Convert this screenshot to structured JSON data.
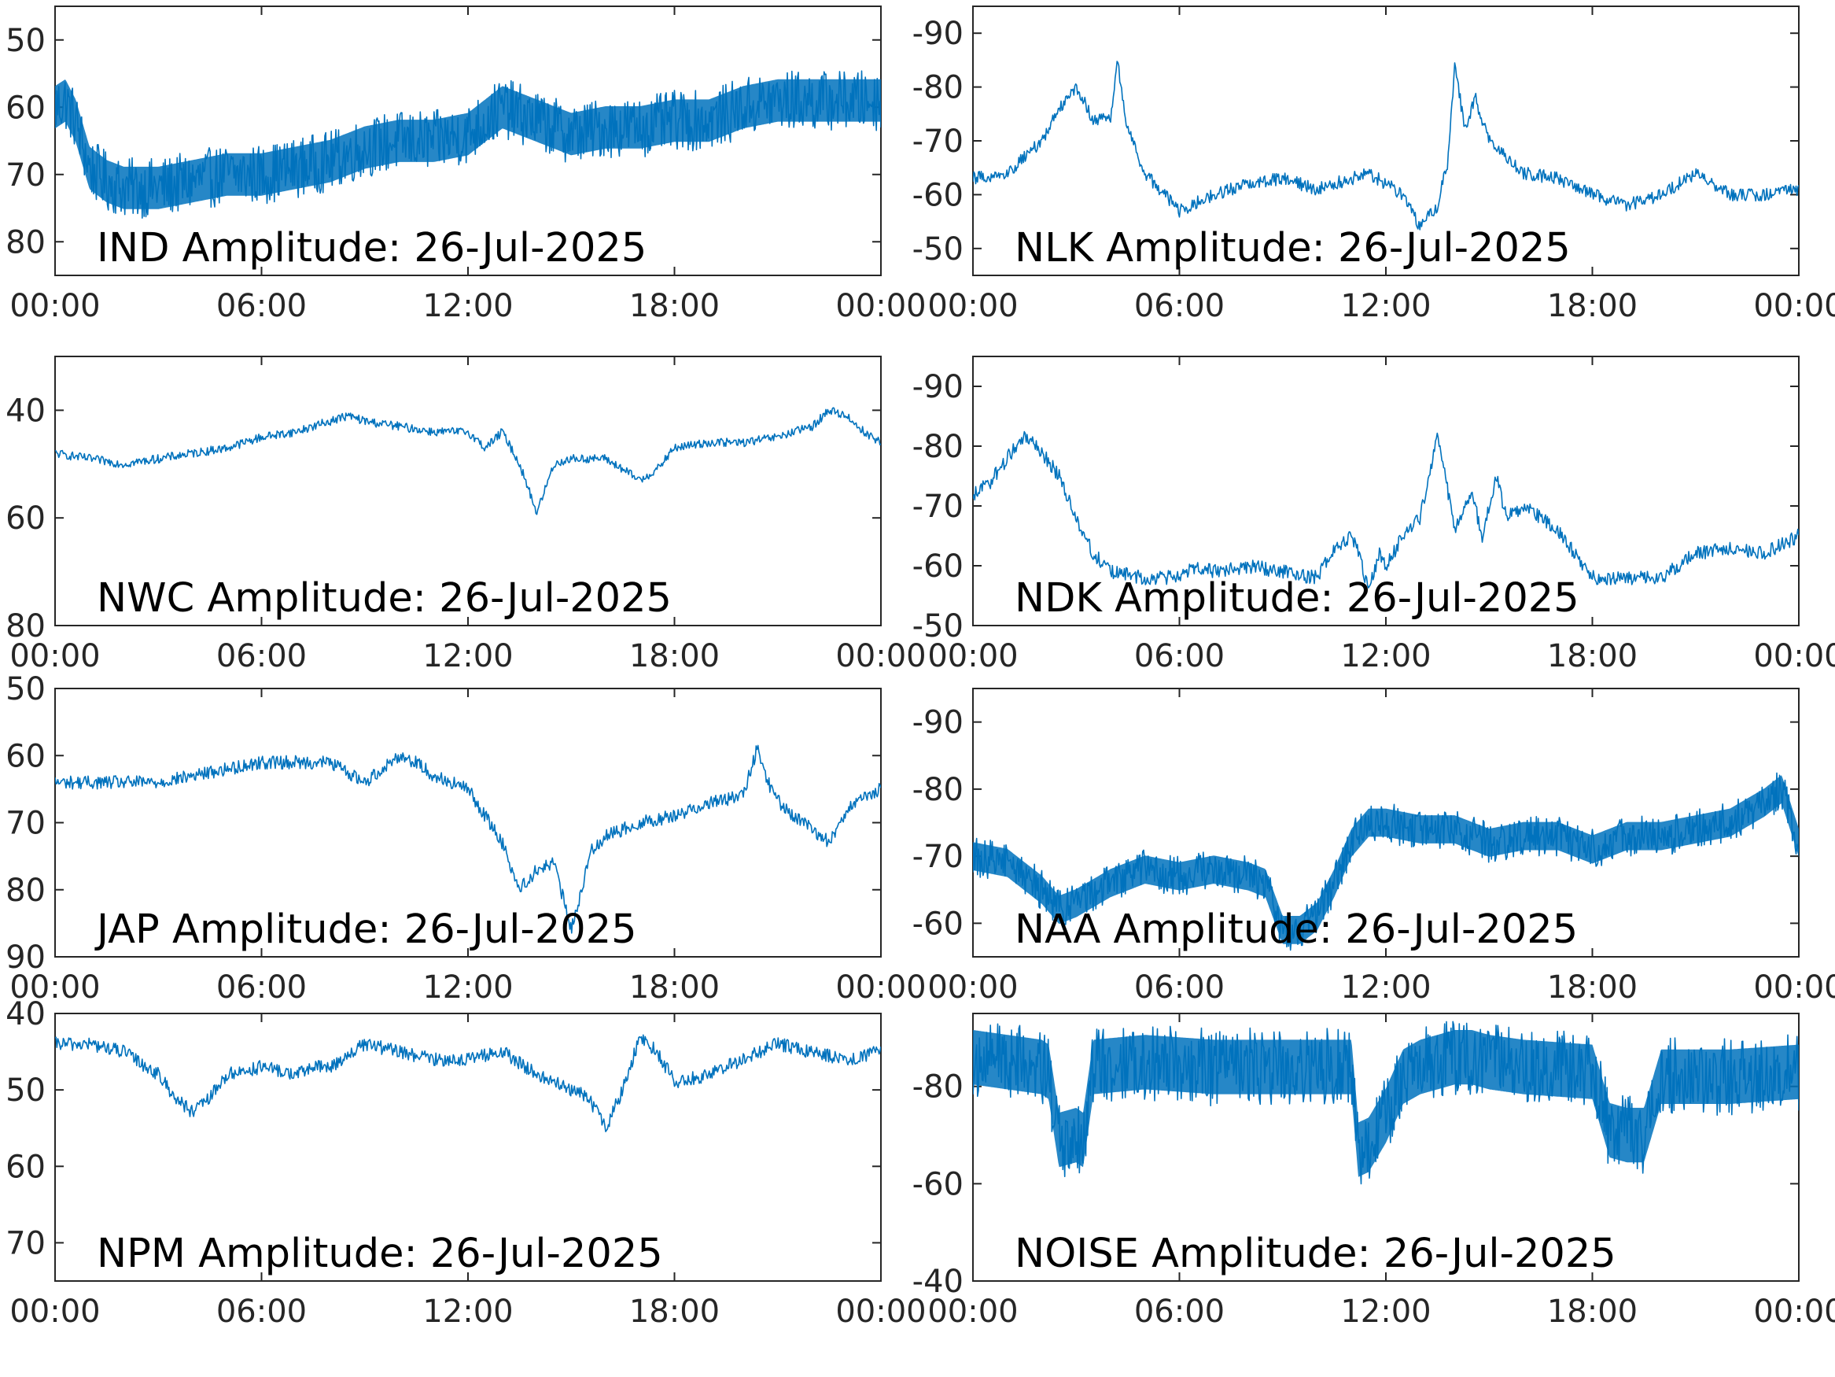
{
  "colors": {
    "trace": "#0072BD",
    "axis": "#262626",
    "background": "#ffffff"
  },
  "x_ticks": [
    "00:00",
    "06:00",
    "12:00",
    "18:00",
    "00:00"
  ],
  "chart_data": [
    {
      "type": "line",
      "title": "IND Amplitude: 26-Jul-2025",
      "x_unit": "hours",
      "xlim": [
        0,
        24
      ],
      "ylim": [
        -85,
        -45
      ],
      "y_reversed": true,
      "y_ticks": [
        -50,
        -60,
        -70,
        -80
      ],
      "y_tick_labels": [
        "50",
        "60",
        "70",
        "80"
      ],
      "noise": 4.5,
      "x": [
        0,
        0.3,
        0.6,
        1.0,
        1.5,
        2.0,
        3.0,
        4.0,
        5.0,
        6.0,
        7.0,
        8.0,
        9.0,
        10.0,
        11.0,
        12.0,
        13.0,
        14.0,
        15.0,
        16.0,
        17.0,
        18.0,
        19.0,
        20.0,
        21.0,
        22.0,
        23.0,
        24.0
      ],
      "y": [
        -60,
        -59,
        -62,
        -69,
        -71,
        -72,
        -72,
        -71,
        -70,
        -70,
        -69,
        -68,
        -66,
        -65,
        -65,
        -64,
        -60,
        -62,
        -64,
        -63,
        -63,
        -62,
        -62,
        -60,
        -59,
        -59,
        -59,
        -59
      ]
    },
    {
      "type": "line",
      "title": "NLK Amplitude: 26-Jul-2025",
      "x_unit": "hours",
      "xlim": [
        0,
        24
      ],
      "ylim": [
        -95,
        -45
      ],
      "y_reversed": false,
      "y_ticks": [
        -50,
        -60,
        -70,
        -80,
        -90
      ],
      "y_tick_labels": [
        "-50",
        "-60",
        "-70",
        "-80",
        "-90"
      ],
      "noise": 1.2,
      "x": [
        0,
        1.0,
        2.0,
        2.5,
        3.0,
        3.5,
        4.0,
        4.2,
        4.5,
        5.0,
        6.0,
        7.0,
        8.0,
        9.0,
        10.0,
        11.0,
        11.5,
        12.0,
        12.5,
        13.0,
        13.5,
        13.8,
        14.0,
        14.3,
        14.6,
        15.0,
        16.0,
        17.0,
        18.0,
        19.0,
        20.0,
        21.0,
        22.0,
        23.0,
        24.0
      ],
      "y": [
        -63,
        -64,
        -70,
        -76,
        -80,
        -74,
        -74,
        -85,
        -72,
        -64,
        -57,
        -60,
        -62,
        -63,
        -61,
        -63,
        -64,
        -62,
        -60,
        -54,
        -58,
        -66,
        -84,
        -72,
        -78,
        -70,
        -64,
        -63,
        -60,
        -58,
        -60,
        -64,
        -60,
        -60,
        -61
      ]
    },
    {
      "type": "line",
      "title": "NWC Amplitude: 26-Jul-2025",
      "x_unit": "hours",
      "xlim": [
        0,
        24
      ],
      "ylim": [
        -80,
        -30
      ],
      "y_reversed": true,
      "y_ticks": [
        -40,
        -60,
        -80
      ],
      "y_tick_labels": [
        "40",
        "60",
        "80"
      ],
      "noise": 0.8,
      "x": [
        0,
        1.0,
        2.0,
        3.0,
        4.0,
        5.0,
        6.0,
        7.0,
        8.0,
        8.5,
        9.0,
        10.0,
        11.0,
        12.0,
        12.5,
        13.0,
        13.5,
        14.0,
        14.5,
        15.0,
        16.0,
        16.5,
        17.0,
        17.5,
        18.0,
        19.0,
        20.0,
        21.0,
        22.0,
        22.5,
        23.0,
        23.5,
        24.0
      ],
      "y": [
        -48,
        -49,
        -50,
        -49,
        -48,
        -47,
        -45,
        -44,
        -42,
        -41,
        -42,
        -43,
        -44,
        -44,
        -47,
        -44,
        -50,
        -59,
        -50,
        -49,
        -49,
        -51,
        -53,
        -51,
        -47,
        -46,
        -46,
        -45,
        -43,
        -40,
        -41,
        -44,
        -46
      ]
    },
    {
      "type": "line",
      "title": "NDK Amplitude: 26-Jul-2025",
      "x_unit": "hours",
      "xlim": [
        0,
        24
      ],
      "ylim": [
        -95,
        -50
      ],
      "y_reversed": false,
      "y_ticks": [
        -50,
        -60,
        -70,
        -80,
        -90
      ],
      "y_tick_labels": [
        "-50",
        "-60",
        "-70",
        "-80",
        "-90"
      ],
      "noise": 1.2,
      "x": [
        0,
        0.5,
        1.0,
        1.5,
        2.0,
        2.5,
        3.0,
        3.5,
        4.0,
        5.0,
        6.0,
        6.5,
        7.0,
        8.0,
        9.0,
        10.0,
        10.5,
        11.0,
        11.2,
        11.5,
        11.8,
        12.0,
        12.5,
        13.0,
        13.5,
        14.0,
        14.5,
        14.8,
        15.2,
        15.5,
        16.0,
        17.0,
        18.0,
        19.0,
        20.0,
        21.0,
        22.0,
        23.0,
        24.0
      ],
      "y": [
        -72,
        -74,
        -78,
        -82,
        -79,
        -75,
        -68,
        -62,
        -59,
        -58,
        -58,
        -60,
        -59,
        -60,
        -59,
        -58,
        -63,
        -65,
        -62,
        -56,
        -62,
        -60,
        -65,
        -68,
        -82,
        -66,
        -72,
        -65,
        -75,
        -68,
        -70,
        -66,
        -58,
        -58,
        -58,
        -62,
        -63,
        -62,
        -65
      ]
    },
    {
      "type": "line",
      "title": "JAP Amplitude: 26-Jul-2025",
      "x_unit": "hours",
      "xlim": [
        0,
        24
      ],
      "ylim": [
        -90,
        -50
      ],
      "y_reversed": true,
      "y_ticks": [
        -50,
        -60,
        -70,
        -80,
        -90
      ],
      "y_tick_labels": [
        "50",
        "60",
        "70",
        "80",
        "90"
      ],
      "noise": 1.0,
      "x": [
        0,
        1.0,
        2.0,
        3.0,
        4.0,
        5.0,
        6.0,
        7.0,
        8.0,
        9.0,
        9.5,
        10.0,
        10.5,
        11.0,
        12.0,
        12.5,
        13.0,
        13.5,
        14.0,
        14.5,
        15.0,
        15.3,
        15.6,
        16.0,
        17.0,
        18.0,
        19.0,
        20.0,
        20.4,
        20.8,
        21.2,
        22.0,
        22.5,
        23.0,
        24.0
      ],
      "y": [
        -64,
        -64,
        -64,
        -64,
        -63,
        -62,
        -61,
        -61,
        -61,
        -64,
        -62,
        -60,
        -61,
        -63,
        -65,
        -69,
        -73,
        -80,
        -77,
        -76,
        -86,
        -80,
        -74,
        -72,
        -70,
        -69,
        -67,
        -66,
        -59,
        -65,
        -68,
        -71,
        -73,
        -68,
        -65
      ]
    },
    {
      "type": "line",
      "title": "NAA Amplitude: 26-Jul-2025",
      "x_unit": "hours",
      "xlim": [
        0,
        24
      ],
      "ylim": [
        -95,
        -55
      ],
      "y_reversed": false,
      "y_ticks": [
        -60,
        -70,
        -80,
        -90
      ],
      "y_tick_labels": [
        "-60",
        "-70",
        "-80",
        "-90"
      ],
      "noise": 3.0,
      "x": [
        0,
        1.0,
        2.0,
        2.5,
        3.0,
        4.0,
        5.0,
        6.0,
        7.0,
        8.0,
        8.5,
        9.0,
        9.5,
        10.0,
        10.5,
        11.0,
        11.5,
        12.0,
        13.0,
        14.0,
        15.0,
        16.0,
        17.0,
        18.0,
        19.0,
        20.0,
        21.0,
        22.0,
        23.0,
        23.5,
        24.0
      ],
      "y": [
        -70,
        -69,
        -65,
        -62,
        -63,
        -66,
        -68,
        -67,
        -68,
        -67,
        -66,
        -59,
        -59,
        -61,
        -66,
        -72,
        -75,
        -75,
        -74,
        -74,
        -72,
        -73,
        -73,
        -71,
        -73,
        -73,
        -74,
        -75,
        -78,
        -80,
        -72
      ]
    },
    {
      "type": "line",
      "title": "NPM Amplitude: 26-Jul-2025",
      "x_unit": "hours",
      "xlim": [
        0,
        24
      ],
      "ylim": [
        -75,
        -40
      ],
      "y_reversed": true,
      "y_ticks": [
        -40,
        -50,
        -60,
        -70
      ],
      "y_tick_labels": [
        "40",
        "50",
        "60",
        "70"
      ],
      "noise": 0.9,
      "x": [
        0,
        1.0,
        2.0,
        3.0,
        3.5,
        4.0,
        4.5,
        5.0,
        6.0,
        7.0,
        7.5,
        8.0,
        9.0,
        10.0,
        11.0,
        12.0,
        13.0,
        14.0,
        15.0,
        15.5,
        16.0,
        16.5,
        17.0,
        17.5,
        18.0,
        19.0,
        20.0,
        21.0,
        22.0,
        23.0,
        24.0
      ],
      "y": [
        -44,
        -44,
        -45,
        -48,
        -51,
        -53,
        -51,
        -48,
        -47,
        -48,
        -47,
        -47,
        -44,
        -45,
        -46,
        -46,
        -45,
        -48,
        -50,
        -51,
        -55,
        -50,
        -43,
        -45,
        -49,
        -48,
        -46,
        -44,
        -45,
        -46,
        -45
      ]
    },
    {
      "type": "line",
      "title": "NOISE Amplitude: 26-Jul-2025",
      "x_unit": "hours",
      "xlim": [
        0,
        24
      ],
      "ylim": [
        -95,
        -40
      ],
      "y_reversed": false,
      "y_ticks": [
        -40,
        -60,
        -80
      ],
      "y_tick_labels": [
        "-40",
        "-60",
        "-80"
      ],
      "noise": 8.0,
      "x": [
        0,
        2.0,
        2.2,
        2.5,
        3.0,
        3.2,
        3.5,
        5.0,
        7.0,
        9.0,
        10.0,
        11.0,
        11.2,
        11.5,
        12.0,
        12.5,
        13.0,
        14.0,
        14.5,
        15.0,
        16.0,
        18.0,
        18.5,
        19.0,
        19.5,
        20.0,
        22.0,
        24.0
      ],
      "y": [
        -86,
        -84,
        -83,
        -69,
        -70,
        -69,
        -84,
        -85,
        -84,
        -84,
        -84,
        -84,
        -67,
        -68,
        -74,
        -82,
        -84,
        -86,
        -86,
        -85,
        -84,
        -83,
        -71,
        -70,
        -70,
        -82,
        -82,
        -83
      ]
    }
  ]
}
